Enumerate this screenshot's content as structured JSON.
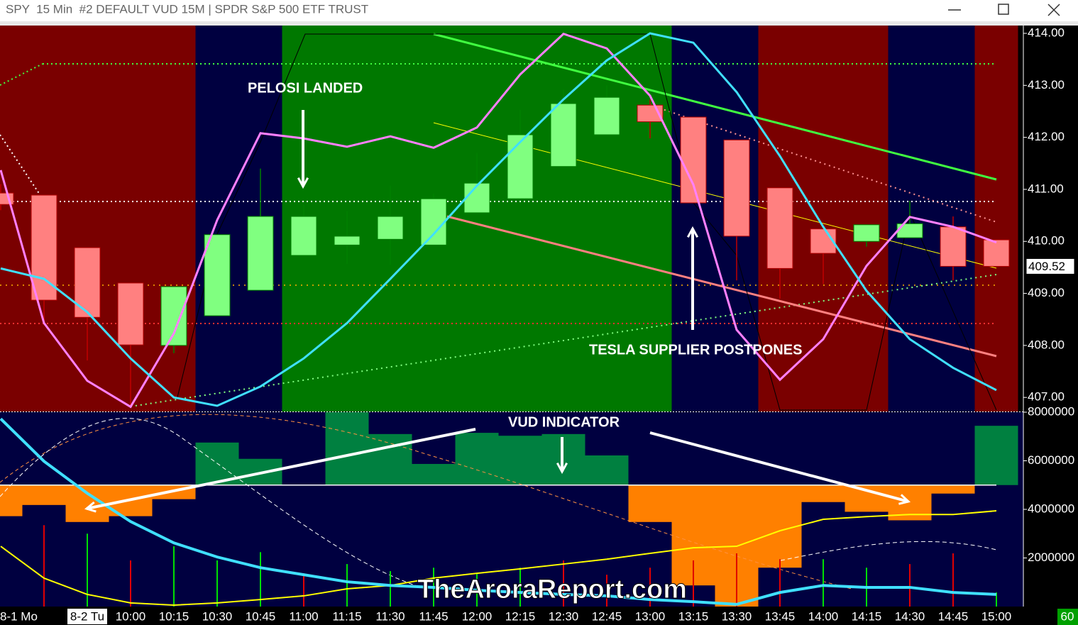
{
  "window_title": "SPY  15 Min  #2 DEFAULT VUD 15M | SPDR S&P 500 ETF TRUST",
  "watermark": "TheAroraReport.com",
  "interval_badge": "60",
  "chart_data": [
    {
      "type": "candlestick",
      "categories": [
        "8-1 Mo",
        null,
        "8-2 Tu",
        "10:00",
        "10:15",
        "10:30",
        "10:45",
        "11:00",
        "11:15",
        "11:30",
        "11:45",
        "12:00",
        "12:15",
        "12:30",
        "12:45",
        "13:00",
        "13:15",
        "13:30",
        "13:45",
        "14:00",
        "14:15",
        "14:30",
        "14:45",
        "15:00"
      ],
      "open": [
        410.93,
        410.89,
        409.88,
        409.2,
        408.0,
        408.57,
        409.06,
        409.73,
        409.93,
        410.04,
        409.93,
        410.55,
        410.82,
        411.44,
        412.05,
        412.62,
        412.39,
        411.95,
        411.03,
        410.24,
        410.0,
        410.07,
        410.28,
        410.03
      ],
      "high": [
        411.1,
        410.89,
        409.88,
        409.2,
        409.13,
        410.13,
        411.4,
        410.7,
        410.58,
        411.07,
        410.92,
        411.7,
        412.53,
        412.92,
        413.0,
        412.73,
        412.39,
        411.95,
        411.03,
        410.24,
        410.32,
        410.78,
        410.48,
        410.03
      ],
      "low": [
        410.6,
        408.4,
        407.71,
        406.82,
        407.85,
        408.57,
        409.06,
        409.73,
        409.57,
        409.55,
        409.93,
        410.55,
        410.82,
        411.44,
        412.05,
        411.98,
        410.74,
        409.25,
        408.9,
        409.18,
        409.9,
        410.07,
        409.25,
        409.52
      ],
      "close": [
        410.71,
        408.87,
        408.54,
        408.01,
        409.13,
        410.13,
        410.48,
        410.48,
        410.1,
        410.48,
        410.82,
        411.12,
        412.05,
        412.65,
        412.77,
        412.3,
        410.74,
        410.1,
        409.48,
        409.77,
        410.32,
        410.34,
        409.52,
        409.52
      ],
      "up_color": "#80ff80",
      "down_color": "#ff8080",
      "background": [
        "#7a0000",
        "#7a0000",
        "#7a0000",
        "#7a0000",
        "#7a0000",
        "#000040",
        "#000040",
        "#007800",
        "#007800",
        "#007800",
        "#007800",
        "#007800",
        "#007800",
        "#007800",
        "#007800",
        "#007800",
        "#000040",
        "#000040",
        "#7a0000",
        "#7a0000",
        "#7a0000",
        "#000040",
        "#000040",
        "#7a0000"
      ],
      "lines": [
        {
          "color": "#ff80ff",
          "values": [
            411.37,
            408.43,
            407.32,
            406.82,
            408.23,
            410.41,
            412.08,
            411.98,
            411.82,
            412.02,
            411.8,
            412.19,
            413.21,
            413.99,
            413.71,
            412.8,
            411.09,
            408.3,
            407.34,
            408.12,
            409.53,
            410.47,
            410.28,
            409.98
          ]
        },
        {
          "color": "#40e0ff",
          "values": [
            409.48,
            409.28,
            408.64,
            407.75,
            407.0,
            406.84,
            407.21,
            407.75,
            408.43,
            409.28,
            410.14,
            411.07,
            411.91,
            412.73,
            413.48,
            414.0,
            413.82,
            412.87,
            411.64,
            410.28,
            409.05,
            408.12,
            407.57,
            407.14
          ]
        }
      ],
      "ylim": [
        406.73,
        414.15
      ],
      "yticks": [
        {
          "value": 407,
          "label": "407.00"
        },
        {
          "value": 408,
          "label": "408.00"
        },
        {
          "value": 409,
          "label": "409.00"
        },
        {
          "value": 410,
          "label": "410.00"
        },
        {
          "value": 411,
          "label": "411.00"
        },
        {
          "value": 412,
          "label": "412.00"
        },
        {
          "value": 413,
          "label": "413.00"
        },
        {
          "value": 414,
          "label": "414.00"
        }
      ],
      "last_price": 409.52,
      "annotations": [
        "PELOSI LANDED",
        "TESLA SUPPLIER POSTPONES"
      ]
    },
    {
      "type": "bar",
      "baseline": 5000000,
      "values": [
        3720000,
        4180000,
        3480000,
        3720000,
        4420000,
        6750000,
        6080000,
        5000000,
        8000000,
        7100000,
        5870000,
        7150000,
        7030000,
        7100000,
        6220000,
        3480000,
        870000,
        0,
        1600000,
        4300000,
        3900000,
        3550000,
        4650000,
        7440000
      ],
      "up_color": "#008040",
      "down_color": "#ff8000",
      "volume": {
        "values": [
          null,
          3350000,
          3000000,
          1900000,
          2480000,
          1900000,
          2240000,
          1370000,
          1750000,
          1460000,
          1600000,
          1370000,
          1600000,
          1900000,
          1310000,
          1600000,
          1900000,
          2190000,
          1950000,
          1950000,
          1600000,
          1750000,
          2190000,
          580000
        ],
        "colors": [
          null,
          "#e00000",
          "#00e000",
          "#e00000",
          "#00e000",
          "#00e000",
          "#00e000",
          "#e00000",
          "#00e000",
          "#00e000",
          "#00e000",
          "#00e000",
          "#00e000",
          "#e00000",
          "#e00000",
          "#e00000",
          "#e00000",
          "#e00000",
          "#e00000",
          "#00e000",
          "#00e000",
          "#e00000",
          "#e00000",
          "#00e000"
        ]
      },
      "lines": [
        {
          "color": "#ffff00",
          "values": [
            2480000,
            1170000,
            500000,
            150000,
            60000,
            150000,
            290000,
            440000,
            730000,
            870000,
            1170000,
            1370000,
            1550000,
            1750000,
            1950000,
            2190000,
            2420000,
            2480000,
            3120000,
            3590000,
            3700000,
            3790000,
            3790000,
            3940000
          ]
        },
        {
          "color": "#40e0ff",
          "values": [
            7730000,
            5980000,
            4660000,
            3500000,
            2620000,
            2040000,
            1600000,
            1310000,
            1020000,
            870000,
            790000,
            670000,
            580000,
            500000,
            440000,
            290000,
            200000,
            90000,
            580000,
            870000,
            790000,
            790000,
            580000,
            500000
          ]
        }
      ],
      "ylim": [
        0,
        8000000
      ],
      "yticks": [
        2000000,
        4000000,
        6000000,
        8000000
      ],
      "annotations": [
        "VUD INDICATOR"
      ]
    }
  ]
}
